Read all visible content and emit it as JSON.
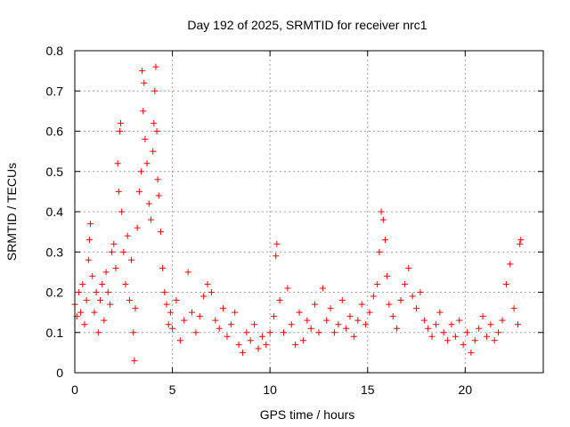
{
  "chart_data": {
    "type": "scatter",
    "title": "Day 192 of 2025, SRMTID for receiver nrc1",
    "xlabel": "GPS time / hours",
    "ylabel": "SRMTID / TECUs",
    "xlim": [
      0,
      24
    ],
    "ylim": [
      0,
      0.8
    ],
    "xticks": [
      0,
      5,
      10,
      15,
      20
    ],
    "xtick_labels": [
      "0",
      "5",
      "10",
      "15",
      "20"
    ],
    "yticks": [
      0,
      0.1,
      0.2,
      0.3,
      0.4,
      0.5,
      0.6,
      0.7,
      0.8
    ],
    "ytick_labels": [
      "0",
      "0.1",
      "0.2",
      "0.3",
      "0.4",
      "0.5",
      "0.6",
      "0.7",
      "0.8"
    ],
    "grid": true,
    "marker": "+",
    "color": "#ff0000",
    "series": [
      {
        "name": "nrc1",
        "points": [
          [
            0.0,
            0.17
          ],
          [
            0.1,
            0.14
          ],
          [
            0.2,
            0.2
          ],
          [
            0.3,
            0.15
          ],
          [
            0.4,
            0.22
          ],
          [
            0.5,
            0.12
          ],
          [
            0.6,
            0.18
          ],
          [
            0.7,
            0.28
          ],
          [
            0.75,
            0.33
          ],
          [
            0.8,
            0.37
          ],
          [
            0.9,
            0.24
          ],
          [
            1.0,
            0.15
          ],
          [
            1.1,
            0.2
          ],
          [
            1.2,
            0.1
          ],
          [
            1.3,
            0.18
          ],
          [
            1.4,
            0.22
          ],
          [
            1.5,
            0.13
          ],
          [
            1.6,
            0.25
          ],
          [
            1.7,
            0.2
          ],
          [
            1.8,
            0.17
          ],
          [
            1.9,
            0.3
          ],
          [
            2.0,
            0.32
          ],
          [
            2.1,
            0.26
          ],
          [
            2.2,
            0.52
          ],
          [
            2.25,
            0.45
          ],
          [
            2.3,
            0.6
          ],
          [
            2.35,
            0.62
          ],
          [
            2.4,
            0.4
          ],
          [
            2.5,
            0.3
          ],
          [
            2.6,
            0.22
          ],
          [
            2.7,
            0.34
          ],
          [
            2.8,
            0.18
          ],
          [
            2.9,
            0.28
          ],
          [
            3.0,
            0.1
          ],
          [
            3.05,
            0.03
          ],
          [
            3.1,
            0.16
          ],
          [
            3.2,
            0.36
          ],
          [
            3.3,
            0.45
          ],
          [
            3.4,
            0.5
          ],
          [
            3.45,
            0.75
          ],
          [
            3.5,
            0.65
          ],
          [
            3.55,
            0.72
          ],
          [
            3.6,
            0.58
          ],
          [
            3.7,
            0.52
          ],
          [
            3.8,
            0.42
          ],
          [
            3.9,
            0.38
          ],
          [
            4.0,
            0.55
          ],
          [
            4.05,
            0.62
          ],
          [
            4.1,
            0.7
          ],
          [
            4.15,
            0.76
          ],
          [
            4.2,
            0.6
          ],
          [
            4.25,
            0.48
          ],
          [
            4.3,
            0.44
          ],
          [
            4.4,
            0.35
          ],
          [
            4.5,
            0.26
          ],
          [
            4.6,
            0.2
          ],
          [
            4.7,
            0.17
          ],
          [
            4.8,
            0.12
          ],
          [
            4.9,
            0.15
          ],
          [
            5.0,
            0.11
          ],
          [
            5.2,
            0.18
          ],
          [
            5.4,
            0.08
          ],
          [
            5.6,
            0.13
          ],
          [
            5.8,
            0.25
          ],
          [
            6.0,
            0.15
          ],
          [
            6.2,
            0.1
          ],
          [
            6.4,
            0.14
          ],
          [
            6.6,
            0.19
          ],
          [
            6.8,
            0.22
          ],
          [
            7.0,
            0.2
          ],
          [
            7.2,
            0.13
          ],
          [
            7.4,
            0.11
          ],
          [
            7.6,
            0.16
          ],
          [
            7.8,
            0.09
          ],
          [
            8.0,
            0.12
          ],
          [
            8.2,
            0.15
          ],
          [
            8.4,
            0.07
          ],
          [
            8.6,
            0.05
          ],
          [
            8.8,
            0.1
          ],
          [
            9.0,
            0.08
          ],
          [
            9.2,
            0.12
          ],
          [
            9.4,
            0.06
          ],
          [
            9.6,
            0.09
          ],
          [
            9.8,
            0.07
          ],
          [
            10.0,
            0.1
          ],
          [
            10.2,
            0.14
          ],
          [
            10.3,
            0.29
          ],
          [
            10.35,
            0.32
          ],
          [
            10.5,
            0.18
          ],
          [
            10.7,
            0.1
          ],
          [
            10.9,
            0.21
          ],
          [
            11.1,
            0.12
          ],
          [
            11.3,
            0.07
          ],
          [
            11.5,
            0.15
          ],
          [
            11.7,
            0.08
          ],
          [
            11.9,
            0.13
          ],
          [
            12.1,
            0.11
          ],
          [
            12.3,
            0.17
          ],
          [
            12.5,
            0.1
          ],
          [
            12.7,
            0.21
          ],
          [
            12.9,
            0.13
          ],
          [
            13.1,
            0.16
          ],
          [
            13.3,
            0.1
          ],
          [
            13.5,
            0.12
          ],
          [
            13.7,
            0.18
          ],
          [
            13.9,
            0.11
          ],
          [
            14.1,
            0.14
          ],
          [
            14.3,
            0.09
          ],
          [
            14.5,
            0.13
          ],
          [
            14.7,
            0.17
          ],
          [
            14.9,
            0.12
          ],
          [
            15.1,
            0.15
          ],
          [
            15.3,
            0.19
          ],
          [
            15.5,
            0.22
          ],
          [
            15.6,
            0.3
          ],
          [
            15.7,
            0.4
          ],
          [
            15.8,
            0.38
          ],
          [
            15.9,
            0.33
          ],
          [
            16.0,
            0.24
          ],
          [
            16.1,
            0.17
          ],
          [
            16.3,
            0.14
          ],
          [
            16.5,
            0.11
          ],
          [
            16.7,
            0.18
          ],
          [
            16.9,
            0.22
          ],
          [
            17.1,
            0.26
          ],
          [
            17.3,
            0.19
          ],
          [
            17.5,
            0.16
          ],
          [
            17.7,
            0.2
          ],
          [
            17.9,
            0.13
          ],
          [
            18.1,
            0.11
          ],
          [
            18.3,
            0.09
          ],
          [
            18.5,
            0.12
          ],
          [
            18.7,
            0.15
          ],
          [
            18.9,
            0.1
          ],
          [
            19.1,
            0.08
          ],
          [
            19.3,
            0.12
          ],
          [
            19.5,
            0.09
          ],
          [
            19.7,
            0.13
          ],
          [
            19.9,
            0.07
          ],
          [
            20.1,
            0.1
          ],
          [
            20.3,
            0.05
          ],
          [
            20.5,
            0.08
          ],
          [
            20.7,
            0.11
          ],
          [
            20.9,
            0.14
          ],
          [
            21.1,
            0.09
          ],
          [
            21.3,
            0.12
          ],
          [
            21.5,
            0.08
          ],
          [
            21.7,
            0.1
          ],
          [
            21.9,
            0.13
          ],
          [
            22.1,
            0.22
          ],
          [
            22.3,
            0.27
          ],
          [
            22.5,
            0.16
          ],
          [
            22.7,
            0.12
          ],
          [
            22.8,
            0.32
          ],
          [
            22.85,
            0.33
          ]
        ]
      }
    ]
  }
}
